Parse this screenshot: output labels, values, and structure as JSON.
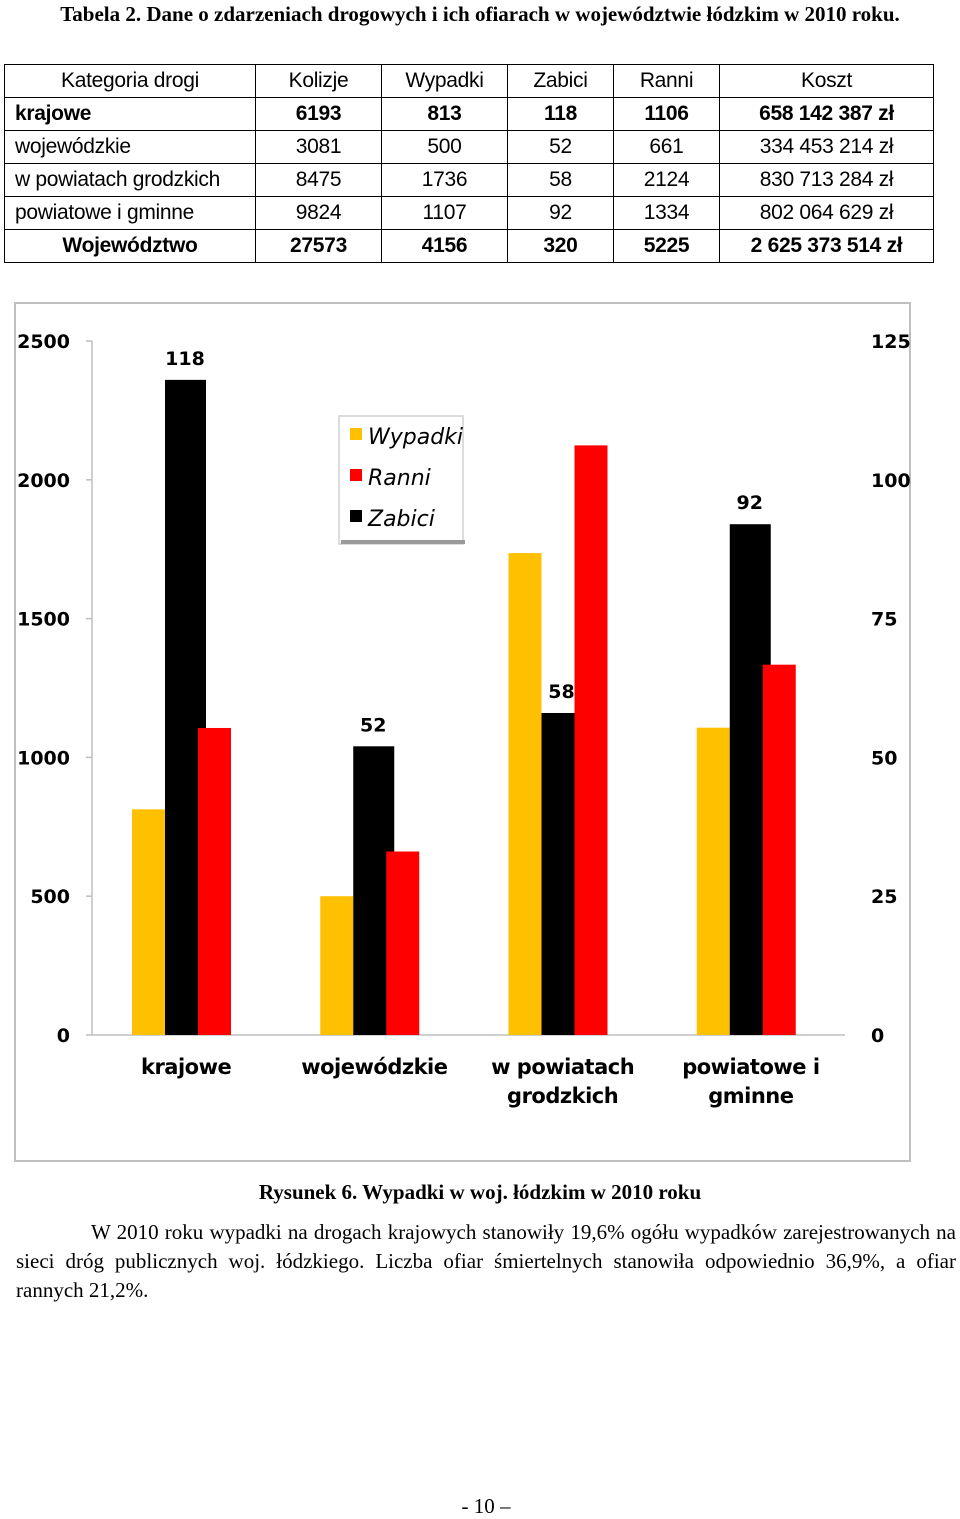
{
  "table": {
    "caption": "Tabela 2. Dane o zdarzeniach drogowych i ich ofiarach w województwie łódzkim w 2010 roku.",
    "headers": [
      "Kategoria drogi",
      "Kolizje",
      "Wypadki",
      "Zabici",
      "Ranni",
      "Koszt"
    ],
    "rows": [
      {
        "category": "krajowe",
        "kolizje": "6193",
        "wypadki": "813",
        "zabici": "118",
        "ranni": "1106",
        "koszt": "658 142 387 zł"
      },
      {
        "category": "wojewódzkie",
        "kolizje": "3081",
        "wypadki": "500",
        "zabici": "52",
        "ranni": "661",
        "koszt": "334 453 214 zł"
      },
      {
        "category": "w powiatach grodzkich",
        "kolizje": "8475",
        "wypadki": "1736",
        "zabici": "58",
        "ranni": "2124",
        "koszt": "830 713 284 zł"
      },
      {
        "category": "powiatowe i gminne",
        "kolizje": "9824",
        "wypadki": "1107",
        "zabici": "92",
        "ranni": "1334",
        "koszt": "802 064 629 zł"
      },
      {
        "category": "Województwo",
        "kolizje": "27573",
        "wypadki": "4156",
        "zabici": "320",
        "ranni": "5225",
        "koszt": "2 625 373 514 zł"
      }
    ]
  },
  "chart_data": {
    "type": "bar",
    "categories": [
      "krajowe",
      "wojewódzkie",
      "w powiatach grodzkich",
      "powiatowe i gminne"
    ],
    "category_lines": [
      [
        "krajowe"
      ],
      [
        "wojewódzkie"
      ],
      [
        "w powiatach",
        "grodzkich"
      ],
      [
        "powiatowe i",
        "gminne"
      ]
    ],
    "series": [
      {
        "name": "Wypadki",
        "axis": "left",
        "color": "#FFC000",
        "values": [
          813,
          500,
          1736,
          1107
        ]
      },
      {
        "name": "Zabici",
        "axis": "right",
        "color": "#000000",
        "values": [
          118,
          52,
          58,
          92
        ]
      },
      {
        "name": "Ranni",
        "axis": "left",
        "color": "#FF0000",
        "values": [
          1106,
          661,
          2124,
          1334
        ]
      }
    ],
    "legend_order": [
      "Wypadki",
      "Ranni",
      "Zabici"
    ],
    "data_labels": {
      "series": "Zabici",
      "values": [
        "118",
        "52",
        "58",
        "92"
      ]
    },
    "y_left": {
      "range": [
        0,
        2500
      ],
      "ticks": [
        "0",
        "500",
        "1000",
        "1500",
        "2000",
        "2500"
      ]
    },
    "y_right": {
      "range": [
        0,
        125
      ],
      "ticks": [
        "0",
        "25",
        "50",
        "75",
        "100",
        "125"
      ]
    },
    "legend_position": "top-center",
    "grid": false
  },
  "figure_caption": "Rysunek 6. Wypadki w woj. łódzkim w 2010 roku",
  "paragraph": "W 2010 roku wypadki na drogach krajowych stanowiły 19,6% ogółu wypadków zarejestrowanych na sieci dróg publicznych woj. łódzkiego. Liczba ofiar śmiertelnych stanowiła odpowiednio 36,9%, a ofiar rannych 21,2%.",
  "page_number": "- 10 –"
}
